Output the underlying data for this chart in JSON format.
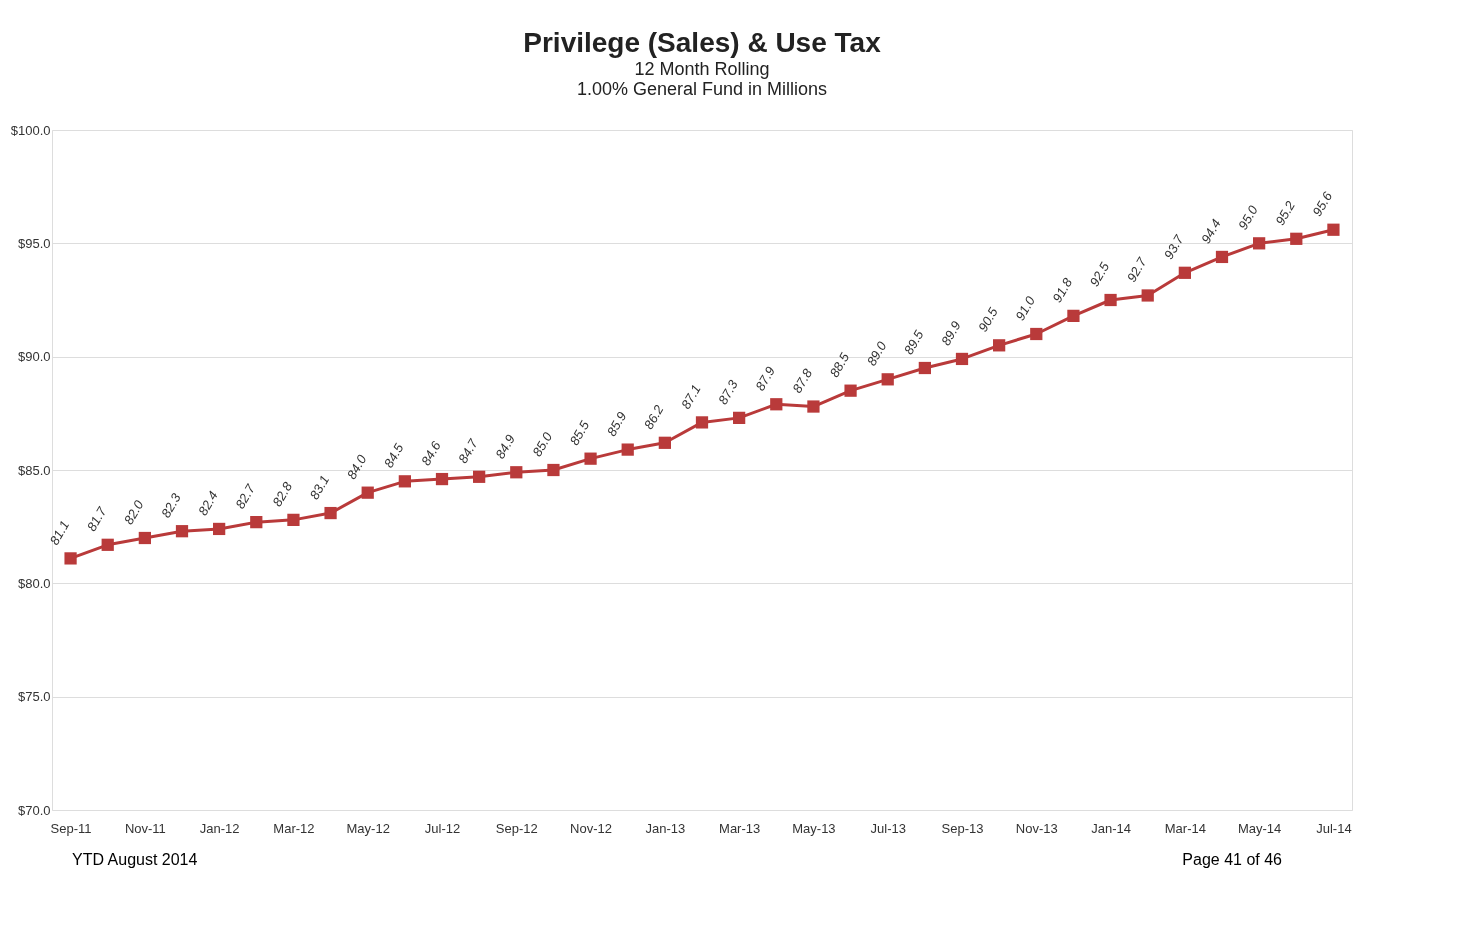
{
  "chart_data": {
    "type": "line",
    "title": "Privilege (Sales) & Use Tax",
    "subtitle": [
      "12 Month Rolling",
      "1.00% General Fund in Millions"
    ],
    "categories": [
      "Sep-11",
      null,
      "Nov-11",
      null,
      "Jan-12",
      null,
      "Mar-12",
      null,
      "May-12",
      null,
      "Jul-12",
      null,
      "Sep-12",
      null,
      "Nov-12",
      null,
      "Jan-13",
      null,
      "Mar-13",
      null,
      "May-13",
      null,
      "Jul-13",
      null,
      "Sep-13",
      null,
      "Nov-13",
      null,
      "Jan-14",
      null,
      "Mar-14",
      null,
      "May-14",
      null,
      "Jul-14"
    ],
    "series": [
      {
        "color": "#b93a3a",
        "values": [
          81.1,
          81.7,
          82.0,
          82.3,
          82.4,
          82.7,
          82.8,
          83.1,
          84.0,
          84.5,
          84.6,
          84.7,
          84.9,
          85.0,
          85.5,
          85.9,
          86.2,
          87.1,
          87.3,
          87.9,
          87.8,
          88.5,
          89.0,
          89.5,
          89.9,
          90.5,
          91.0,
          91.8,
          92.5,
          92.7,
          93.7,
          94.4,
          95.0,
          95.2,
          95.6
        ],
        "value_labels": [
          "81.1",
          "81.7",
          "82.0",
          "82.3",
          "82.4",
          "82.7",
          "82.8",
          "83.1",
          "84.0",
          "84.5",
          "84.6",
          "84.7",
          "84.9",
          "85.0",
          "85.5",
          "85.9",
          "86.2",
          "87.1",
          "87.3",
          "87.9",
          "87.8",
          "88.5",
          "89.0",
          "89.5",
          "89.9",
          "90.5",
          "91.0",
          "91.8",
          "92.5",
          "92.7",
          "93.7",
          "94.4",
          "95.0",
          "95.2",
          "95.6"
        ]
      }
    ],
    "ylim": [
      70,
      100
    ],
    "yticks": [
      {
        "value": 70,
        "label": "$70.0"
      },
      {
        "value": 75,
        "label": "$75.0"
      },
      {
        "value": 80,
        "label": "$80.0"
      },
      {
        "value": 85,
        "label": "$85.0"
      },
      {
        "value": 90,
        "label": "$90.0"
      },
      {
        "value": 95,
        "label": "$95.0"
      },
      {
        "value": 100,
        "label": "$100.0"
      }
    ],
    "grid": "y",
    "marker": "square",
    "line_style": "solid",
    "annotations": [
      "YTD August 2014",
      "Page 41 of 46"
    ]
  }
}
